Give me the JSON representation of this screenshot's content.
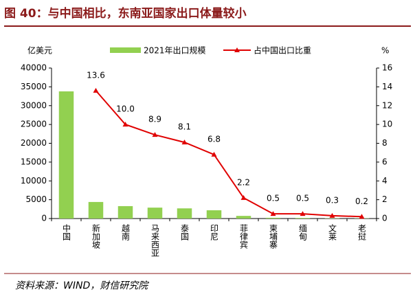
{
  "chart_data": {
    "type": "bar_line",
    "title": "图 40：与中国相比，东南亚国家出口体量较小",
    "source": "资料来源：WIND，财信研究院",
    "y_label": "亿美元",
    "y2_label": "%",
    "categories": [
      "中国",
      "新加坡",
      "越南",
      "马来西亚",
      "泰国",
      "印尼",
      "菲律宾",
      "柬埔寨",
      "缅甸",
      "文莱",
      "老挝"
    ],
    "series": [
      {
        "name": "2021年出口规模",
        "color": "#92d050",
        "kind": "bar",
        "values": [
          33800,
          4400,
          3300,
          2900,
          2700,
          2200,
          700,
          200,
          150,
          70,
          60
        ]
      },
      {
        "name": "占中国出口比重",
        "color": "#e00000",
        "kind": "line",
        "axis": "y2",
        "values": [
          null,
          13.6,
          10,
          8.9,
          8.1,
          6.8,
          2.2,
          0.5,
          0.5,
          0.3,
          0.2
        ],
        "value_labels": [
          null,
          "13.6",
          "10.0",
          "8.9",
          "8.1",
          "6.8",
          "2.2",
          "0.5",
          "0.5",
          "0.3",
          "0.2"
        ]
      }
    ],
    "ylim": [
      0,
      40000
    ],
    "yticks": [
      0,
      5000,
      10000,
      15000,
      20000,
      25000,
      30000,
      35000,
      40000
    ],
    "y2lim": [
      0,
      16
    ],
    "y2ticks": [
      0,
      2,
      4,
      6,
      8,
      10,
      12,
      14,
      16
    ]
  }
}
